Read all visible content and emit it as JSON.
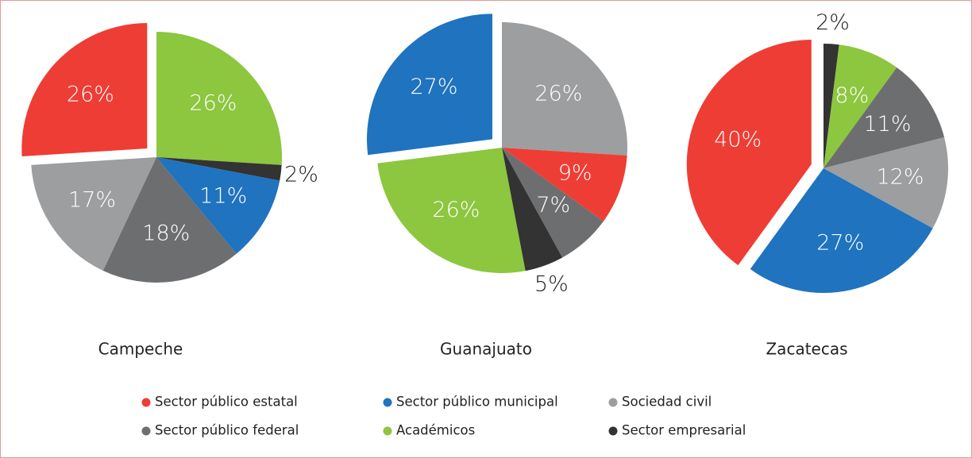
{
  "chart_data": [
    {
      "type": "pie",
      "title": "Campeche",
      "values": [
        26,
        11,
        17,
        18,
        26,
        2
      ],
      "value_labels": [
        "26%",
        "11%",
        "17%",
        "18%",
        "26%",
        "2%"
      ],
      "exploded": 0
    },
    {
      "type": "pie",
      "title": "Guanajuato",
      "values": [
        9,
        27,
        26,
        7,
        26,
        5
      ],
      "value_labels": [
        "9%",
        "27%",
        "26%",
        "7%",
        "26%",
        "5%"
      ],
      "exploded": 1
    },
    {
      "type": "pie",
      "title": "Zacatecas",
      "values": [
        40,
        27,
        12,
        11,
        8,
        2
      ],
      "value_labels": [
        "40%",
        "27%",
        "12%",
        "11%",
        "8%",
        "2%"
      ],
      "exploded": 0
    }
  ],
  "legend": {
    "items": [
      {
        "name": "Sector público estatal",
        "color": "#ee3d35"
      },
      {
        "name": "Sector público municipal",
        "color": "#1f73bf"
      },
      {
        "name": "Sociedad civil",
        "color": "#9d9ea0"
      },
      {
        "name": "Sector público federal",
        "color": "#6d6e70"
      },
      {
        "name": "Académicos",
        "color": "#8dc63f"
      },
      {
        "name": "Sector empresarial",
        "color": "#333333"
      }
    ]
  }
}
